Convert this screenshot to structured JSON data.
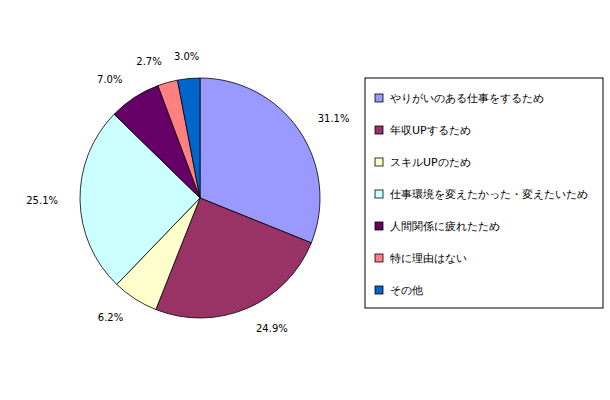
{
  "chart_data": {
    "type": "pie",
    "categories": [
      "やりがいのある仕事をするため",
      "年収UPするため",
      "スキルUPのため",
      "仕事環境を変えたかった・変えたいため",
      "人間関係に疲れたため",
      "特に理由はない",
      "その他"
    ],
    "values": [
      31.1,
      24.9,
      6.2,
      25.1,
      7.0,
      2.7,
      3.0
    ],
    "value_labels": [
      "31.1%",
      "24.9%",
      "6.2%",
      "25.1%",
      "7.0%",
      "2.7%",
      "3.0%"
    ],
    "colors": [
      "#9999ff",
      "#993366",
      "#ffffcc",
      "#ccffff",
      "#660066",
      "#ff8080",
      "#0066cc"
    ],
    "data_labels": true,
    "legend": "right"
  }
}
